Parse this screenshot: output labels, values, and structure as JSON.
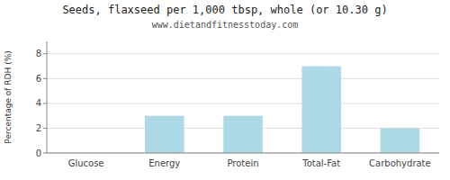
{
  "chart_data": {
    "type": "bar",
    "title": "Seeds, flaxseed per 1,000 tbsp, whole (or 10.30 g)",
    "subtitle": "www.dietandfitnesstoday.com",
    "ylabel": "Percentage of RDH (%)",
    "categories": [
      "Glucose",
      "Energy",
      "Protein",
      "Total-Fat",
      "Carbohydrate"
    ],
    "values": [
      0,
      3,
      3,
      7,
      2
    ],
    "color": "#add8e6",
    "ylim": [
      0,
      9
    ],
    "yticks": [
      0,
      2,
      4,
      6,
      8
    ],
    "grid": true
  }
}
